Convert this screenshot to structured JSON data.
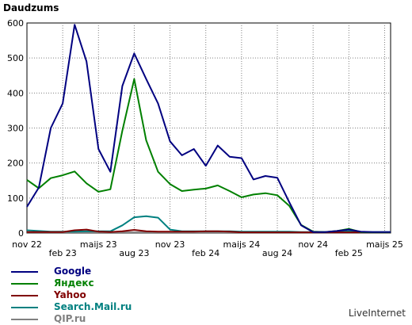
{
  "brand": "LiveInternet",
  "chart_data": {
    "type": "line",
    "ylabel": "Daudzums",
    "ylim": [
      0,
      600
    ],
    "yticks": [
      0,
      100,
      200,
      300,
      400,
      500,
      600
    ],
    "grid": true,
    "xlim": [
      0,
      30.5
    ],
    "x_tick_labels": [
      "nov 22",
      "feb 23",
      "maijs 23",
      "aug 23",
      "nov 23",
      "feb 24",
      "maijs 24",
      "aug 24",
      "nov 24",
      "feb 25",
      "maijs 25"
    ],
    "x_tick_positions": [
      0,
      3,
      6,
      9,
      12,
      15,
      18,
      21,
      24,
      27,
      30
    ],
    "x": [
      0,
      1,
      2,
      3,
      4,
      5,
      6,
      7,
      8,
      9,
      10,
      11,
      12,
      13,
      14,
      15,
      16,
      17,
      18,
      19,
      20,
      21,
      22,
      23,
      24,
      25,
      26,
      27,
      28,
      29,
      30,
      30.5
    ],
    "series": [
      {
        "name": "Google",
        "color": "#000080",
        "values": [
          75,
          130,
          300,
          370,
          595,
          490,
          240,
          175,
          420,
          513,
          440,
          370,
          262,
          222,
          240,
          192,
          250,
          218,
          214,
          153,
          163,
          158,
          88,
          22,
          3,
          3,
          6,
          10,
          4,
          3,
          3,
          3
        ]
      },
      {
        "name": "Яндекс",
        "color": "#008000",
        "values": [
          152,
          128,
          157,
          165,
          176,
          142,
          118,
          125,
          292,
          440,
          265,
          175,
          140,
          120,
          124,
          127,
          136,
          120,
          102,
          110,
          114,
          108,
          78,
          23,
          4,
          3,
          6,
          12,
          3,
          2,
          2,
          2
        ]
      },
      {
        "name": "Yahoo",
        "color": "#800000",
        "values": [
          3,
          3,
          3,
          3,
          8,
          10,
          4,
          3,
          5,
          9,
          5,
          4,
          4,
          4,
          4,
          5,
          5,
          4,
          2,
          2,
          2,
          2,
          2,
          2,
          2,
          2,
          2,
          2,
          2,
          2,
          2,
          2
        ]
      },
      {
        "name": "Search.Mail.ru",
        "color": "#008080",
        "values": [
          8,
          6,
          4,
          4,
          4,
          5,
          5,
          5,
          22,
          45,
          48,
          44,
          10,
          5,
          5,
          5,
          5,
          5,
          4,
          4,
          4,
          4,
          4,
          3,
          3,
          3,
          3,
          5,
          3,
          3,
          3,
          3
        ]
      },
      {
        "name": "QIP.ru",
        "color": "#808080",
        "values": [
          2,
          2,
          2,
          2,
          2,
          2,
          2,
          2,
          2,
          2,
          2,
          2,
          2,
          2,
          2,
          2,
          2,
          2,
          2,
          2,
          2,
          2,
          2,
          2,
          2,
          2,
          2,
          2,
          2,
          2,
          2,
          2
        ]
      }
    ]
  }
}
